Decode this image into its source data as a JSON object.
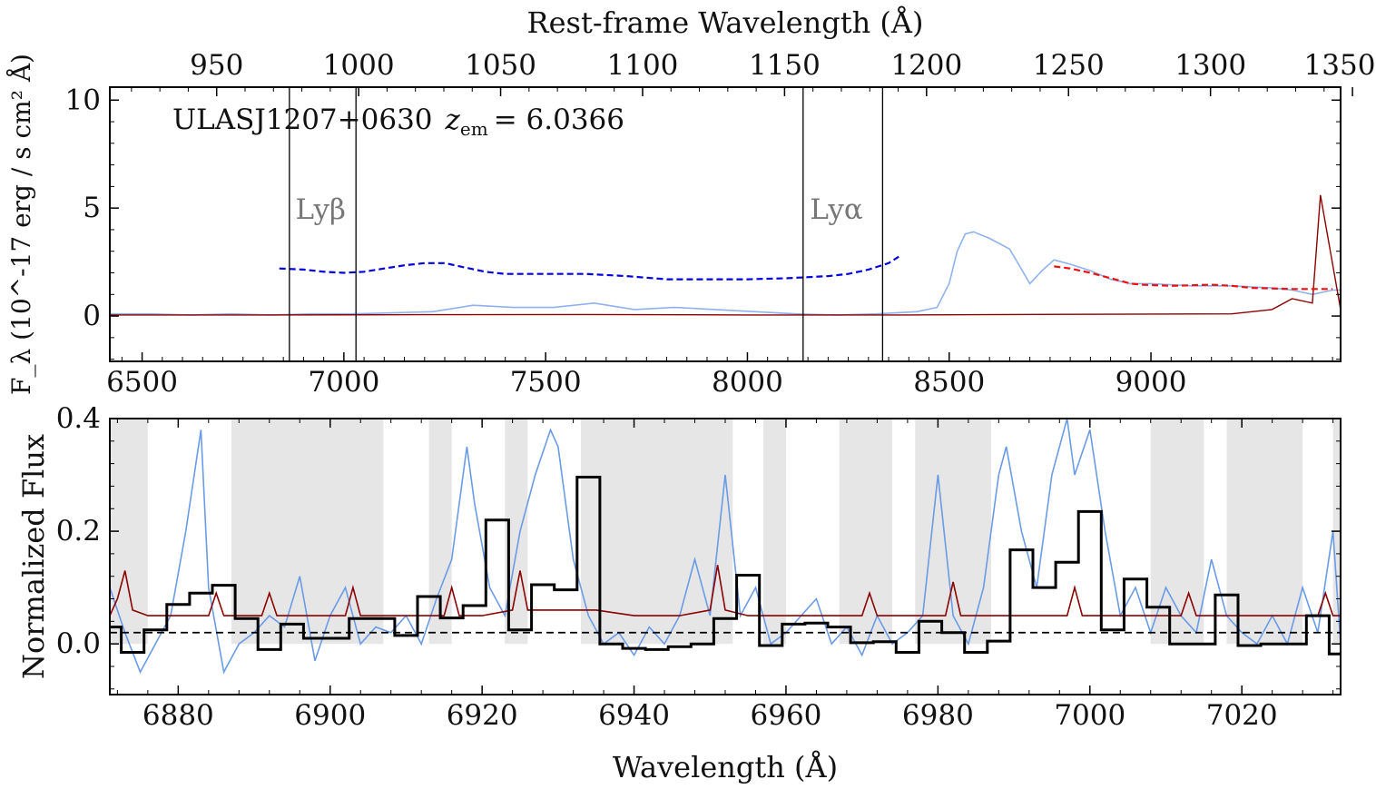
{
  "chart_data": [
    {
      "panel": "top",
      "type": "line",
      "annotation": {
        "object": "ULASJ1207+0630",
        "redshift_label": "z",
        "redshift_subscript": "em",
        "redshift_value": "= 6.0366"
      },
      "xlabel": "",
      "ylabel": "F_λ (10^-17 erg / s cm² Å)",
      "xlim": [
        6420,
        9470
      ],
      "ylim": [
        -2.1,
        10.6
      ],
      "xticks": [
        6500,
        7000,
        7500,
        8000,
        8500,
        9000
      ],
      "yticks": [
        0,
        5,
        10
      ],
      "top_axis": {
        "label": "Rest-frame Wavelength (Å)",
        "redshift": 6.0366,
        "ticks": [
          950,
          1000,
          1050,
          1100,
          1150,
          1200,
          1250,
          1300,
          1350
        ]
      },
      "vertical_lines": [
        6865,
        7030,
        8138,
        8335
      ],
      "line_labels": [
        {
          "text": "Lyβ",
          "x": 6880
        },
        {
          "text": "Lyα",
          "x": 8155
        }
      ],
      "line_label_y": 4.5,
      "series": [
        {
          "role": "flux",
          "color": "#8fb2ee",
          "x": [
            6420,
            6520,
            6620,
            6720,
            6820,
            6920,
            7020,
            7120,
            7220,
            7320,
            7420,
            7520,
            7620,
            7720,
            7820,
            7920,
            8020,
            8120,
            8220,
            8320,
            8420,
            8470,
            8500,
            8520,
            8540,
            8560,
            8600,
            8650,
            8700,
            8730,
            8760,
            8800,
            8850,
            8900,
            8950,
            9000,
            9100,
            9200,
            9300,
            9350,
            9400,
            9450,
            9470
          ],
          "y": [
            0.1,
            0.1,
            0.05,
            0.1,
            0.05,
            0.1,
            0.1,
            0.15,
            0.2,
            0.5,
            0.4,
            0.4,
            0.6,
            0.3,
            0.4,
            0.3,
            0.2,
            0.1,
            0.05,
            0.1,
            0.2,
            0.4,
            1.5,
            3.0,
            3.8,
            3.9,
            3.6,
            3.1,
            1.5,
            2.1,
            2.6,
            2.4,
            2.1,
            1.7,
            1.5,
            1.5,
            1.4,
            1.4,
            1.3,
            1.2,
            1.0,
            1.2,
            1.2
          ]
        },
        {
          "role": "error",
          "color": "#8b0000",
          "x": [
            6420,
            6800,
            7200,
            7600,
            8000,
            8400,
            8800,
            9200,
            9300,
            9350,
            9400,
            9420,
            9470
          ],
          "y": [
            0.05,
            0.05,
            0.06,
            0.07,
            0.05,
            0.05,
            0.08,
            0.1,
            0.3,
            0.8,
            0.6,
            5.6,
            0.3
          ]
        },
        {
          "role": "blue_continuum",
          "color": "#0000dd",
          "style": "dashed",
          "x": [
            6840,
            6900,
            6950,
            7000,
            7050,
            7100,
            7150,
            7200,
            7250,
            7300,
            7350,
            7400,
            7500,
            7600,
            7700,
            7800,
            7900,
            8000,
            8100,
            8200,
            8250,
            8300,
            8350,
            8375
          ],
          "y": [
            2.2,
            2.15,
            2.05,
            2.0,
            2.05,
            2.2,
            2.35,
            2.45,
            2.45,
            2.25,
            2.05,
            1.95,
            1.95,
            1.95,
            1.85,
            1.7,
            1.7,
            1.7,
            1.75,
            1.85,
            1.95,
            2.15,
            2.45,
            2.75
          ]
        },
        {
          "role": "red_continuum",
          "color": "#ee1111",
          "style": "dashed",
          "x": [
            8760,
            8800,
            8850,
            8900,
            8950,
            8980,
            9050,
            9150,
            9200,
            9250,
            9350,
            9450
          ],
          "y": [
            2.3,
            2.2,
            2.0,
            1.75,
            1.5,
            1.45,
            1.4,
            1.45,
            1.4,
            1.3,
            1.25,
            1.25
          ]
        }
      ]
    },
    {
      "panel": "bottom",
      "type": "line",
      "xlabel": "Wavelength (Å)",
      "ylabel": "Normalized Flux",
      "xlim": [
        6871,
        7033
      ],
      "ylim": [
        -0.09,
        0.4
      ],
      "xticks": [
        6880,
        6900,
        6920,
        6940,
        6960,
        6980,
        7000,
        7020
      ],
      "yticks": [
        0.0,
        0.2,
        0.4
      ],
      "ytick_labels": [
        "0.0",
        "0.2",
        "0.4"
      ],
      "reference_line": 0.02,
      "masked_regions": [
        [
          6871,
          6876
        ],
        [
          6887,
          6907
        ],
        [
          6913,
          6916
        ],
        [
          6923,
          6926
        ],
        [
          6933,
          6953
        ],
        [
          6957,
          6960
        ],
        [
          6967,
          6974
        ],
        [
          6977,
          6987
        ],
        [
          7008,
          7015
        ],
        [
          7018,
          7028
        ],
        [
          7032,
          7033
        ]
      ],
      "series": [
        {
          "role": "normalized_flux",
          "color": "#6a9be6",
          "x": [
            6871,
            6873,
            6875,
            6877,
            6879,
            6881,
            6883,
            6884,
            6886,
            6888,
            6890,
            6892,
            6894,
            6896,
            6898,
            6900,
            6902,
            6904,
            6906,
            6908,
            6910,
            6912,
            6914,
            6916,
            6918,
            6919,
            6921,
            6923,
            6925,
            6927,
            6929,
            6930,
            6932,
            6934,
            6936,
            6938,
            6940,
            6942,
            6944,
            6946,
            6948,
            6950,
            6952,
            6954,
            6956,
            6958,
            6960,
            6962,
            6964,
            6966,
            6968,
            6970,
            6972,
            6974,
            6976,
            6978,
            6980,
            6982,
            6984,
            6986,
            6988,
            6989,
            6991,
            6993,
            6995,
            6997,
            6998,
            7000,
            7002,
            7004,
            7006,
            7008,
            7010,
            7012,
            7014,
            7016,
            7018,
            7020,
            7022,
            7024,
            7026,
            7028,
            7030,
            7032,
            7033
          ],
          "y": [
            0.1,
            0.02,
            -0.05,
            0.0,
            0.05,
            0.2,
            0.38,
            0.1,
            -0.05,
            0.0,
            0.02,
            0.05,
            0.03,
            0.12,
            -0.03,
            0.05,
            0.1,
            0.0,
            0.03,
            0.02,
            0.05,
            0.0,
            0.08,
            0.15,
            0.35,
            0.25,
            0.1,
            0.05,
            0.2,
            0.3,
            0.38,
            0.35,
            0.15,
            0.05,
            0.0,
            0.02,
            -0.02,
            0.03,
            0.0,
            0.05,
            0.15,
            0.05,
            0.3,
            0.05,
            0.1,
            0.0,
            0.02,
            0.05,
            0.08,
            0.0,
            0.03,
            -0.02,
            0.05,
            0.0,
            0.02,
            0.05,
            0.3,
            0.05,
            0.0,
            0.1,
            0.3,
            0.35,
            0.2,
            0.1,
            0.3,
            0.4,
            0.3,
            0.38,
            0.2,
            0.05,
            0.1,
            0.02,
            0.1,
            0.05,
            0.02,
            0.15,
            0.05,
            0.02,
            0.0,
            0.05,
            0.0,
            0.1,
            0.02,
            0.2,
            0.0
          ]
        },
        {
          "role": "error",
          "color": "#8b0000",
          "x": [
            6871,
            6872,
            6873,
            6874,
            6876,
            6884,
            6885,
            6886,
            6888,
            6891,
            6892,
            6893,
            6896,
            6902,
            6903,
            6904,
            6907,
            6915,
            6916,
            6917,
            6920,
            6924,
            6925,
            6926,
            6929,
            6935,
            6940,
            6946,
            6950,
            6951,
            6952,
            6955,
            6960,
            6964,
            6970,
            6971,
            6972,
            6975,
            6981,
            6982,
            6983,
            6986,
            6997,
            6998,
            6999,
            7002,
            7012,
            7013,
            7014,
            7017,
            7027,
            7030,
            7031,
            7032,
            7033
          ],
          "y": [
            0.05,
            0.08,
            0.13,
            0.06,
            0.05,
            0.05,
            0.09,
            0.05,
            0.05,
            0.05,
            0.09,
            0.05,
            0.05,
            0.05,
            0.1,
            0.05,
            0.05,
            0.05,
            0.1,
            0.05,
            0.05,
            0.06,
            0.13,
            0.06,
            0.06,
            0.06,
            0.05,
            0.05,
            0.06,
            0.14,
            0.06,
            0.05,
            0.05,
            0.05,
            0.05,
            0.09,
            0.05,
            0.05,
            0.05,
            0.11,
            0.05,
            0.05,
            0.05,
            0.1,
            0.05,
            0.05,
            0.05,
            0.09,
            0.05,
            0.05,
            0.05,
            0.05,
            0.09,
            0.05,
            0.05
          ]
        },
        {
          "role": "binned_flux",
          "color": "#000000",
          "step": true,
          "edges": [
            6871,
            6872.5,
            6875.5,
            6878.5,
            6881.5,
            6884.5,
            6887.5,
            6890.5,
            6893.5,
            6896.5,
            6899.5,
            6902.5,
            6905.5,
            6908.5,
            6911.5,
            6914.5,
            6917.5,
            6920.5,
            6923.5,
            6926.5,
            6929.5,
            6932.5,
            6935.5,
            6938.5,
            6941.5,
            6944.5,
            6947.5,
            6950.5,
            6953.5,
            6956.5,
            6959.5,
            6962.5,
            6965.5,
            6968.5,
            6971.5,
            6974.5,
            6977.5,
            6980.5,
            6983.5,
            6986.5,
            6989.5,
            6992.5,
            6995.5,
            6998.5,
            7001.5,
            7004.5,
            7007.5,
            7010.5,
            7013.5,
            7016.5,
            7019.5,
            7022.5,
            7025.5,
            7028.5,
            7031.5,
            7033
          ],
          "values": [
            0.03,
            -0.015,
            0.025,
            0.07,
            0.09,
            0.104,
            0.045,
            -0.01,
            0.035,
            0.01,
            0.01,
            0.045,
            0.045,
            0.015,
            0.084,
            0.046,
            0.068,
            0.22,
            0.025,
            0.105,
            0.096,
            0.296,
            0.0,
            -0.008,
            -0.01,
            -0.005,
            0.0,
            0.045,
            0.122,
            -0.003,
            0.035,
            0.037,
            0.03,
            0.002,
            0.004,
            -0.015,
            0.04,
            0.02,
            -0.015,
            0.005,
            0.167,
            0.1,
            0.145,
            0.235,
            0.025,
            0.115,
            0.065,
            0.0,
            0.0,
            0.087,
            -0.003,
            0.0,
            0.0,
            0.05,
            -0.018
          ]
        }
      ]
    }
  ]
}
